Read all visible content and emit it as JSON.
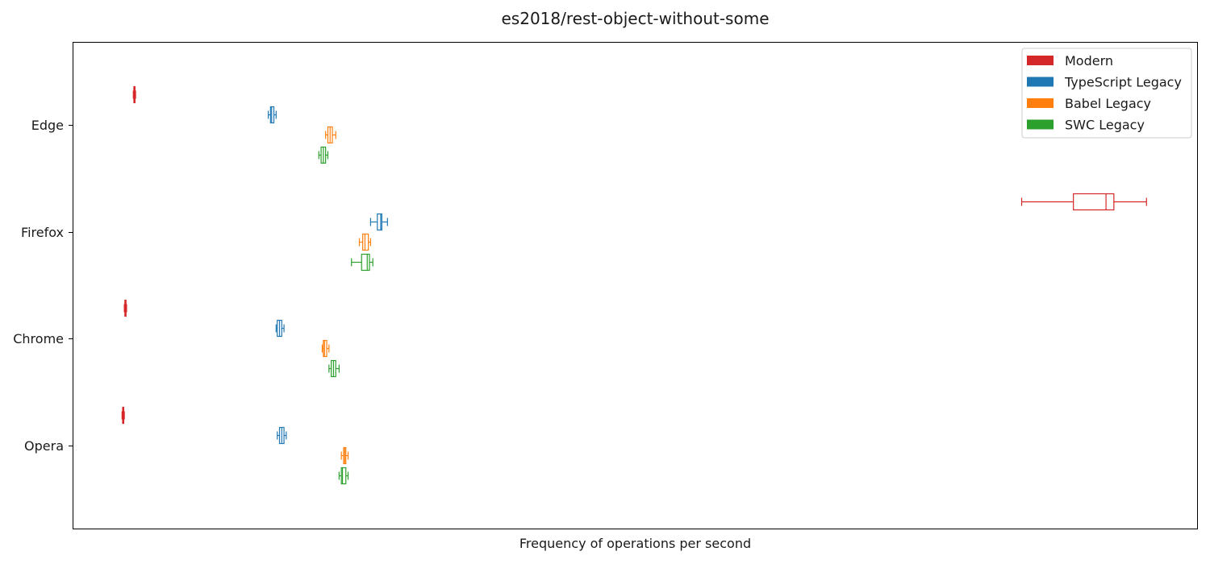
{
  "chart_data": {
    "type": "boxplot",
    "orientation": "horizontal",
    "title": "es2018/rest-object-without-some",
    "xlabel": "Frequency of operations per second",
    "ylabel": "",
    "x_ticks_visible": false,
    "xlim": [
      0,
      100
    ],
    "categories": [
      "Edge",
      "Firefox",
      "Chrome",
      "Opera"
    ],
    "legend": {
      "placement": "top-right"
    },
    "series": [
      {
        "name": "Modern",
        "color": "#d62728",
        "boxes": [
          {
            "category": "Edge",
            "whislo": 5.4,
            "q1": 5.45,
            "med": 5.5,
            "q3": 5.55,
            "whishi": 5.6
          },
          {
            "category": "Firefox",
            "whislo": 84.4,
            "q1": 89.0,
            "med": 91.9,
            "q3": 92.6,
            "whishi": 95.5
          },
          {
            "category": "Chrome",
            "whislo": 4.6,
            "q1": 4.65,
            "med": 4.7,
            "q3": 4.75,
            "whishi": 4.8
          },
          {
            "category": "Opera",
            "whislo": 4.4,
            "q1": 4.45,
            "med": 4.5,
            "q3": 4.55,
            "whishi": 4.6
          }
        ]
      },
      {
        "name": "TypeScript Legacy",
        "color": "#1f77b4",
        "boxes": [
          {
            "category": "Edge",
            "whislo": 17.4,
            "q1": 17.6,
            "med": 17.7,
            "q3": 17.9,
            "whishi": 18.1
          },
          {
            "category": "Firefox",
            "whislo": 26.5,
            "q1": 27.1,
            "med": 27.4,
            "q3": 27.5,
            "whishi": 28.0
          },
          {
            "category": "Chrome",
            "whislo": 18.1,
            "q1": 18.2,
            "med": 18.4,
            "q3": 18.6,
            "whishi": 18.8
          },
          {
            "category": "Opera",
            "whislo": 18.2,
            "q1": 18.4,
            "med": 18.6,
            "q3": 18.8,
            "whishi": 19.0
          }
        ]
      },
      {
        "name": "Babel Legacy",
        "color": "#ff7f0e",
        "boxes": [
          {
            "category": "Edge",
            "whislo": 22.5,
            "q1": 22.7,
            "med": 22.9,
            "q3": 23.1,
            "whishi": 23.4
          },
          {
            "category": "Firefox",
            "whislo": 25.5,
            "q1": 25.8,
            "med": 26.0,
            "q3": 26.3,
            "whishi": 26.5
          },
          {
            "category": "Chrome",
            "whislo": 22.2,
            "q1": 22.3,
            "med": 22.4,
            "q3": 22.6,
            "whishi": 22.8
          },
          {
            "category": "Opera",
            "whislo": 23.9,
            "q1": 24.1,
            "med": 24.2,
            "q3": 24.3,
            "whishi": 24.5
          }
        ]
      },
      {
        "name": "SWC Legacy",
        "color": "#2ca02c",
        "boxes": [
          {
            "category": "Edge",
            "whislo": 21.9,
            "q1": 22.1,
            "med": 22.3,
            "q3": 22.5,
            "whishi": 22.7
          },
          {
            "category": "Firefox",
            "whislo": 24.8,
            "q1": 25.7,
            "med": 26.2,
            "q3": 26.4,
            "whishi": 26.7
          },
          {
            "category": "Chrome",
            "whislo": 22.8,
            "q1": 23.0,
            "med": 23.2,
            "q3": 23.4,
            "whishi": 23.7
          },
          {
            "category": "Opera",
            "whislo": 23.7,
            "q1": 23.9,
            "med": 24.0,
            "q3": 24.3,
            "whishi": 24.5
          }
        ]
      }
    ]
  }
}
